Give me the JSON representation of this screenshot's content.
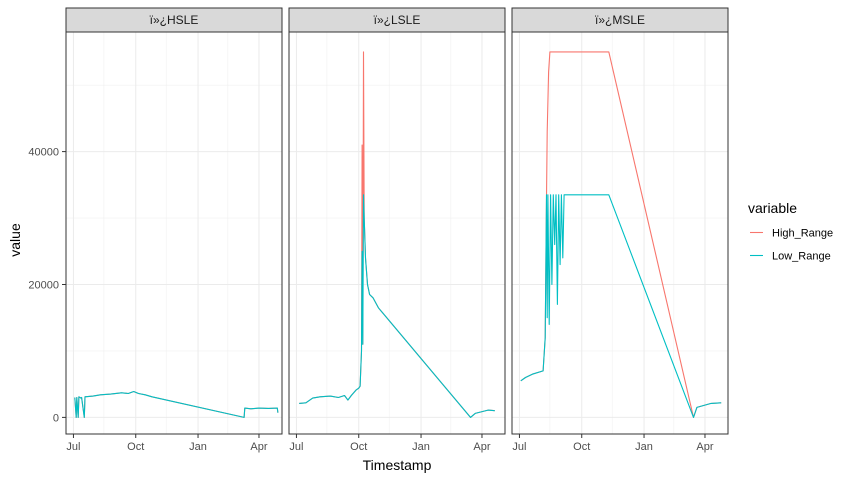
{
  "chart_data": {
    "type": "line",
    "xlabel": "Timestamp",
    "ylabel": "value",
    "x_domain": [
      "2020-06-20",
      "2021-05-05"
    ],
    "ylim": [
      -2500,
      58000
    ],
    "x_ticks": [
      {
        "date": "2020-07-01",
        "label": "Jul"
      },
      {
        "date": "2020-10-01",
        "label": "Oct"
      },
      {
        "date": "2021-01-01",
        "label": "Jan"
      },
      {
        "date": "2021-04-01",
        "label": "Apr"
      }
    ],
    "y_ticks": [
      0,
      20000,
      40000
    ],
    "legend": {
      "title": "variable",
      "placement": "right",
      "entries": [
        {
          "name": "High_Range",
          "color": "#F8766D"
        },
        {
          "name": "Low_Range",
          "color": "#00BFC4"
        }
      ]
    },
    "panels": [
      {
        "strip": "ï»¿HSLE",
        "series": [
          {
            "name": "High_Range",
            "points": [
              [
                "2020-07-03",
                3000
              ],
              [
                "2020-07-05",
                0
              ],
              [
                "2020-07-06",
                3000
              ],
              [
                "2020-07-08",
                0
              ],
              [
                "2020-07-09",
                3100
              ],
              [
                "2020-07-12",
                2900
              ],
              [
                "2020-07-13",
                3000
              ],
              [
                "2020-07-17",
                0
              ],
              [
                "2020-07-18",
                3100
              ],
              [
                "2020-07-30",
                3200
              ],
              [
                "2020-08-10",
                3400
              ],
              [
                "2020-08-25",
                3500
              ],
              [
                "2020-09-10",
                3700
              ],
              [
                "2020-09-20",
                3600
              ],
              [
                "2020-09-28",
                3900
              ],
              [
                "2020-10-05",
                3600
              ],
              [
                "2020-10-15",
                3400
              ],
              [
                "2020-10-25",
                3100
              ],
              [
                "2021-03-10",
                0
              ],
              [
                "2021-03-11",
                1400
              ],
              [
                "2021-03-20",
                1300
              ],
              [
                "2021-04-01",
                1400
              ],
              [
                "2021-04-15",
                1350
              ],
              [
                "2021-04-28",
                1400
              ],
              [
                "2021-04-29",
                700
              ]
            ]
          },
          {
            "name": "Low_Range",
            "points": [
              [
                "2020-07-03",
                3000
              ],
              [
                "2020-07-05",
                0
              ],
              [
                "2020-07-06",
                3000
              ],
              [
                "2020-07-08",
                0
              ],
              [
                "2020-07-09",
                3100
              ],
              [
                "2020-07-12",
                2900
              ],
              [
                "2020-07-13",
                3000
              ],
              [
                "2020-07-17",
                0
              ],
              [
                "2020-07-18",
                3100
              ],
              [
                "2020-07-30",
                3200
              ],
              [
                "2020-08-10",
                3400
              ],
              [
                "2020-08-25",
                3500
              ],
              [
                "2020-09-10",
                3700
              ],
              [
                "2020-09-20",
                3600
              ],
              [
                "2020-09-28",
                3900
              ],
              [
                "2020-10-05",
                3600
              ],
              [
                "2020-10-15",
                3400
              ],
              [
                "2020-10-25",
                3100
              ],
              [
                "2021-03-10",
                0
              ],
              [
                "2021-03-11",
                1400
              ],
              [
                "2021-03-20",
                1300
              ],
              [
                "2021-04-01",
                1400
              ],
              [
                "2021-04-15",
                1350
              ],
              [
                "2021-04-28",
                1400
              ],
              [
                "2021-04-29",
                700
              ]
            ]
          }
        ]
      },
      {
        "strip": "ï»¿LSLE",
        "series": [
          {
            "name": "High_Range",
            "points": [
              [
                "2020-07-05",
                2100
              ],
              [
                "2020-07-15",
                2200
              ],
              [
                "2020-07-25",
                2900
              ],
              [
                "2020-08-05",
                3100
              ],
              [
                "2020-08-20",
                3200
              ],
              [
                "2020-09-01",
                3000
              ],
              [
                "2020-09-10",
                3300
              ],
              [
                "2020-09-15",
                2600
              ],
              [
                "2020-09-20",
                3300
              ],
              [
                "2020-09-27",
                4100
              ],
              [
                "2020-10-01",
                4400
              ],
              [
                "2020-10-03",
                4700
              ],
              [
                "2020-10-05",
                10000
              ],
              [
                "2020-10-06",
                41000
              ],
              [
                "2020-10-07",
                11000
              ],
              [
                "2020-10-08",
                55000
              ],
              [
                "2020-10-09",
                30000
              ],
              [
                "2020-10-11",
                24000
              ],
              [
                "2020-10-14",
                20000
              ],
              [
                "2020-10-17",
                18500
              ],
              [
                "2020-10-22",
                18000
              ],
              [
                "2020-10-30",
                16500
              ],
              [
                "2021-03-15",
                0
              ],
              [
                "2021-03-22",
                600
              ],
              [
                "2021-04-10",
                1100
              ],
              [
                "2021-04-20",
                1000
              ]
            ]
          },
          {
            "name": "Low_Range",
            "points": [
              [
                "2020-07-05",
                2100
              ],
              [
                "2020-07-15",
                2200
              ],
              [
                "2020-07-25",
                2900
              ],
              [
                "2020-08-05",
                3100
              ],
              [
                "2020-08-20",
                3200
              ],
              [
                "2020-09-01",
                3000
              ],
              [
                "2020-09-10",
                3300
              ],
              [
                "2020-09-15",
                2600
              ],
              [
                "2020-09-20",
                3300
              ],
              [
                "2020-09-27",
                4100
              ],
              [
                "2020-10-01",
                4400
              ],
              [
                "2020-10-03",
                4700
              ],
              [
                "2020-10-05",
                10000
              ],
              [
                "2020-10-06",
                25000
              ],
              [
                "2020-10-07",
                11000
              ],
              [
                "2020-10-08",
                33500
              ],
              [
                "2020-10-09",
                30000
              ],
              [
                "2020-10-11",
                24000
              ],
              [
                "2020-10-14",
                20000
              ],
              [
                "2020-10-17",
                18500
              ],
              [
                "2020-10-22",
                18000
              ],
              [
                "2020-10-30",
                16500
              ],
              [
                "2021-03-15",
                0
              ],
              [
                "2021-03-22",
                600
              ],
              [
                "2021-04-10",
                1100
              ],
              [
                "2021-04-20",
                1000
              ]
            ]
          }
        ]
      },
      {
        "strip": "ï»¿MSLE",
        "series": [
          {
            "name": "High_Range",
            "points": [
              [
                "2020-07-03",
                5500
              ],
              [
                "2020-07-10",
                6000
              ],
              [
                "2020-07-20",
                6500
              ],
              [
                "2020-08-05",
                7000
              ],
              [
                "2020-08-08",
                12000
              ],
              [
                "2020-08-10",
                33000
              ],
              [
                "2020-08-11",
                43000
              ],
              [
                "2020-08-13",
                52000
              ],
              [
                "2020-08-15",
                55000
              ],
              [
                "2020-11-10",
                55000
              ],
              [
                "2021-03-15",
                0
              ],
              [
                "2021-03-20",
                1500
              ],
              [
                "2021-04-10",
                2100
              ],
              [
                "2021-04-25",
                2200
              ]
            ]
          },
          {
            "name": "Low_Range",
            "points": [
              [
                "2020-07-03",
                5500
              ],
              [
                "2020-07-10",
                6000
              ],
              [
                "2020-07-20",
                6500
              ],
              [
                "2020-08-05",
                7000
              ],
              [
                "2020-08-08",
                12000
              ],
              [
                "2020-08-10",
                33500
              ],
              [
                "2020-08-11",
                15000
              ],
              [
                "2020-08-12",
                33500
              ],
              [
                "2020-08-14",
                14000
              ],
              [
                "2020-08-16",
                33500
              ],
              [
                "2020-08-18",
                20000
              ],
              [
                "2020-08-20",
                33500
              ],
              [
                "2020-08-22",
                26000
              ],
              [
                "2020-08-24",
                33500
              ],
              [
                "2020-08-26",
                17000
              ],
              [
                "2020-08-28",
                33500
              ],
              [
                "2020-08-30",
                23000
              ],
              [
                "2020-09-01",
                33500
              ],
              [
                "2020-09-03",
                24000
              ],
              [
                "2020-09-05",
                33500
              ],
              [
                "2020-09-08",
                33500
              ],
              [
                "2020-11-10",
                33500
              ],
              [
                "2021-03-15",
                0
              ],
              [
                "2021-03-20",
                1500
              ],
              [
                "2021-04-10",
                2100
              ],
              [
                "2021-04-25",
                2200
              ]
            ]
          }
        ]
      }
    ]
  }
}
